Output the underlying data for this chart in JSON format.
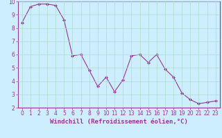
{
  "x": [
    0,
    1,
    2,
    3,
    4,
    5,
    6,
    7,
    8,
    9,
    10,
    11,
    12,
    13,
    14,
    15,
    16,
    17,
    18,
    19,
    20,
    21,
    22,
    23
  ],
  "y": [
    8.4,
    9.6,
    9.8,
    9.8,
    9.7,
    8.6,
    5.9,
    6.0,
    4.8,
    3.6,
    4.3,
    3.2,
    4.1,
    5.9,
    6.0,
    5.4,
    6.0,
    4.9,
    4.3,
    3.1,
    2.6,
    2.3,
    2.4,
    2.5
  ],
  "line_color": "#993399",
  "marker": "D",
  "marker_size": 2.0,
  "linewidth": 0.8,
  "bg_color": "#cceeff",
  "grid_color": "#aaddcc",
  "xlabel": "Windchill (Refroidissement éolien,°C)",
  "xlabel_fontsize": 6.5,
  "xlim": [
    -0.5,
    23.5
  ],
  "ylim": [
    2,
    10
  ],
  "yticks": [
    2,
    3,
    4,
    5,
    6,
    7,
    8,
    9,
    10
  ],
  "xticks": [
    0,
    1,
    2,
    3,
    4,
    5,
    6,
    7,
    8,
    9,
    10,
    11,
    12,
    13,
    14,
    15,
    16,
    17,
    18,
    19,
    20,
    21,
    22,
    23
  ],
  "tick_fontsize": 5.5,
  "axis_color": "#993399",
  "spine_color": "#993399"
}
